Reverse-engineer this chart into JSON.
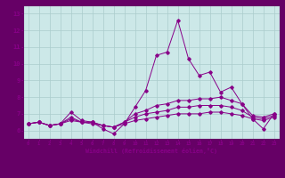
{
  "title": "",
  "xlabel": "Windchill (Refroidissement éolien,°C)",
  "xlim": [
    -0.5,
    23.5
  ],
  "ylim": [
    5.5,
    13.5
  ],
  "xticks": [
    0,
    1,
    2,
    3,
    4,
    5,
    6,
    7,
    8,
    9,
    10,
    11,
    12,
    13,
    14,
    15,
    16,
    17,
    18,
    19,
    20,
    21,
    22,
    23
  ],
  "yticks": [
    6,
    7,
    8,
    9,
    10,
    11,
    12,
    13
  ],
  "background_color": "#cce8e8",
  "border_color": "#660066",
  "grid_color": "#aacccc",
  "line_color": "#880088",
  "series": [
    {
      "x": [
        0,
        1,
        2,
        3,
        4,
        5,
        6,
        7,
        8,
        9,
        10,
        11,
        12,
        13,
        14,
        15,
        16,
        17,
        18,
        19,
        20,
        21,
        22,
        23
      ],
      "y": [
        6.4,
        6.5,
        6.3,
        6.4,
        7.1,
        6.6,
        6.5,
        6.1,
        5.8,
        6.4,
        7.4,
        8.4,
        10.5,
        10.7,
        12.6,
        10.3,
        9.3,
        9.5,
        8.3,
        8.6,
        7.6,
        6.7,
        6.1,
        7.0
      ]
    },
    {
      "x": [
        0,
        1,
        2,
        3,
        4,
        5,
        6,
        7,
        8,
        9,
        10,
        11,
        12,
        13,
        14,
        15,
        16,
        17,
        18,
        19,
        20,
        21,
        22,
        23
      ],
      "y": [
        6.4,
        6.5,
        6.3,
        6.4,
        6.8,
        6.5,
        6.5,
        6.3,
        6.2,
        6.5,
        7.0,
        7.2,
        7.5,
        7.6,
        7.8,
        7.8,
        7.9,
        7.9,
        8.0,
        7.8,
        7.6,
        6.9,
        6.8,
        7.0
      ]
    },
    {
      "x": [
        0,
        1,
        2,
        3,
        4,
        5,
        6,
        7,
        8,
        9,
        10,
        11,
        12,
        13,
        14,
        15,
        16,
        17,
        18,
        19,
        20,
        21,
        22,
        23
      ],
      "y": [
        6.4,
        6.5,
        6.3,
        6.4,
        6.7,
        6.5,
        6.5,
        6.3,
        6.2,
        6.5,
        6.8,
        7.0,
        7.1,
        7.2,
        7.4,
        7.4,
        7.5,
        7.5,
        7.5,
        7.4,
        7.2,
        6.8,
        6.7,
        6.9
      ]
    },
    {
      "x": [
        0,
        1,
        2,
        3,
        4,
        5,
        6,
        7,
        8,
        9,
        10,
        11,
        12,
        13,
        14,
        15,
        16,
        17,
        18,
        19,
        20,
        21,
        22,
        23
      ],
      "y": [
        6.4,
        6.5,
        6.3,
        6.4,
        6.6,
        6.5,
        6.4,
        6.3,
        6.2,
        6.4,
        6.6,
        6.7,
        6.8,
        6.9,
        7.0,
        7.0,
        7.0,
        7.1,
        7.1,
        7.0,
        6.9,
        6.7,
        6.6,
        6.8
      ]
    }
  ]
}
